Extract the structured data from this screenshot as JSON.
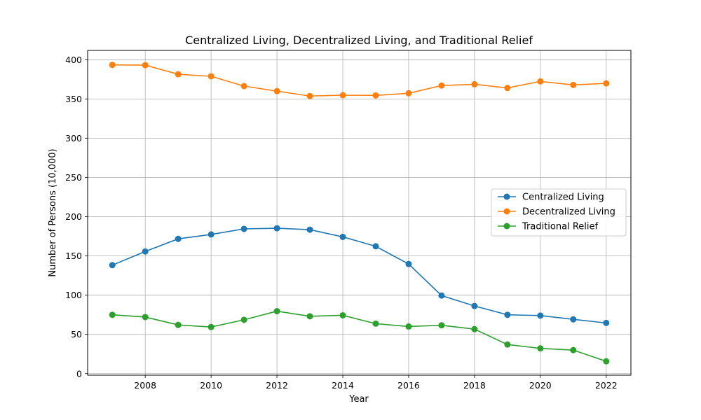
{
  "chart_data": {
    "type": "line",
    "title": "Centralized Living, Decentralized Living, and Traditional Relief",
    "xlabel": "Year",
    "ylabel": "Number of Persons (10,000)",
    "x": [
      2007,
      2008,
      2009,
      2010,
      2011,
      2012,
      2013,
      2014,
      2015,
      2016,
      2017,
      2018,
      2019,
      2020,
      2021,
      2022
    ],
    "xlim": [
      2006.25,
      2022.75
    ],
    "ylim": [
      -2,
      412
    ],
    "xticks": [
      2008,
      2010,
      2012,
      2014,
      2016,
      2018,
      2020,
      2022
    ],
    "yticks": [
      0,
      50,
      100,
      150,
      200,
      250,
      300,
      350,
      400
    ],
    "grid": true,
    "legend_position": "center-right",
    "series": [
      {
        "name": "Centralized Living",
        "color": "#1f77b4",
        "values": [
          138.3,
          155.7,
          171.8,
          177.4,
          184.5,
          185.3,
          183.5,
          174.3,
          162.3,
          139.7,
          99.5,
          86.2,
          75.0,
          74.0,
          69.2,
          64.6
        ]
      },
      {
        "name": "Decentralized Living",
        "color": "#ff7f0e",
        "values": [
          393.5,
          393.2,
          381.6,
          379.0,
          366.5,
          360.1,
          353.8,
          354.9,
          354.6,
          357.3,
          367.2,
          368.8,
          364.1,
          372.5,
          368.0,
          370.0
        ]
      },
      {
        "name": "Traditional Relief",
        "color": "#2ca02c",
        "values": [
          75.0,
          72.1,
          62.1,
          59.4,
          68.6,
          79.6,
          73.1,
          74.3,
          63.7,
          60.1,
          61.6,
          56.7,
          37.1,
          32.2,
          30.0,
          15.7
        ]
      }
    ]
  }
}
